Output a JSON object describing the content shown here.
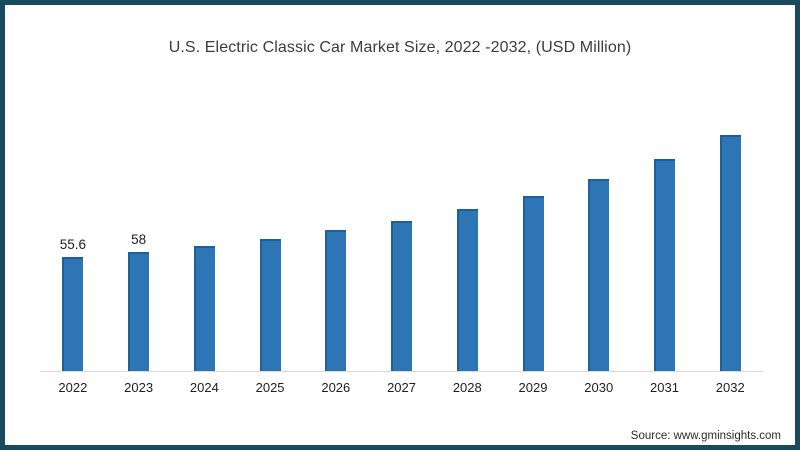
{
  "page": {
    "source": "Source: www.gminsights.com"
  },
  "colors": {
    "bar": "#2e75b6",
    "bar_edge": "#1e5f98",
    "border": "#1a4a5e",
    "axis_line": "#d9d9d9",
    "title_text": "#3c3c3c",
    "tick_text": "#1f1f1f"
  },
  "chart_data": {
    "type": "bar",
    "title": "U.S. Electric Classic Car Market Size, 2022 -2032, (USD Million)",
    "categories": [
      "2022",
      "2023",
      "2024",
      "2025",
      "2026",
      "2027",
      "2028",
      "2029",
      "2030",
      "2031",
      "2032"
    ],
    "values": [
      55.6,
      58,
      60.8,
      64.1,
      68.3,
      72.8,
      78.5,
      85.2,
      93.4,
      102.9,
      114.8
    ],
    "data_labels": [
      "55.6",
      "58",
      "",
      "",
      "",
      "",
      "",
      "",
      "",
      "",
      ""
    ],
    "xlabel": "",
    "ylabel": "",
    "ylim": [
      0,
      120
    ],
    "grid": false,
    "legend": false,
    "bar_color": "#2e75b6",
    "notes": "Only the first two bars (2022, 2023) display numeric data labels; remaining values estimated from bar heights."
  }
}
